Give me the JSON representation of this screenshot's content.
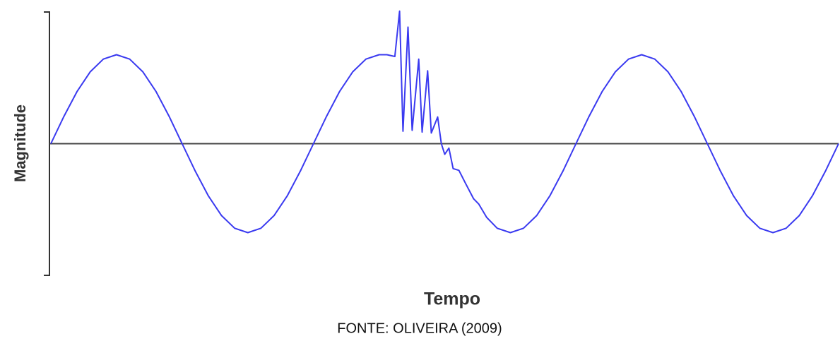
{
  "chart_data": {
    "type": "line",
    "ylabel": "Magnitude",
    "xlabel": "Tempo",
    "source": "FONTE: OLIVEIRA (2009)",
    "xlim": [
      0,
      3
    ],
    "ylim": [
      -1.48,
      1.48
    ],
    "x": [
      0,
      0.05,
      0.1,
      0.15,
      0.2,
      0.25,
      0.3,
      0.35,
      0.4,
      0.45,
      0.5,
      0.55,
      0.6,
      0.65,
      0.7,
      0.75,
      0.8,
      0.85,
      0.9,
      0.95,
      1,
      1.05,
      1.1,
      1.15,
      1.2,
      1.25,
      1.28,
      1.31,
      1.328,
      1.341,
      1.36,
      1.376,
      1.401,
      1.414,
      1.435,
      1.449,
      1.473,
      1.487,
      1.5,
      1.516,
      1.532,
      1.554,
      1.58,
      1.61,
      1.63,
      1.66,
      1.7,
      1.75,
      1.8,
      1.85,
      1.9,
      1.95,
      2,
      2.05,
      2.1,
      2.15,
      2.2,
      2.25,
      2.3,
      2.35,
      2.4,
      2.45,
      2.5,
      2.55,
      2.6,
      2.65,
      2.7,
      2.75,
      2.8,
      2.85,
      2.9,
      2.95,
      3
    ],
    "series": [
      {
        "color": "#3a3af0",
        "values": [
          0,
          0.309,
          0.588,
          0.809,
          0.951,
          1,
          0.951,
          0.809,
          0.588,
          0.309,
          0,
          -0.309,
          -0.588,
          -0.809,
          -0.951,
          -1,
          -0.951,
          -0.809,
          -0.588,
          -0.309,
          0,
          0.309,
          0.588,
          0.809,
          0.951,
          1,
          1,
          0.98,
          1.49,
          0.14,
          1.31,
          0.15,
          0.95,
          0.13,
          0.82,
          0.12,
          0.3,
          0,
          -0.12,
          -0.05,
          -0.28,
          -0.3,
          -0.45,
          -0.62,
          -0.68,
          -0.83,
          -0.951,
          -1,
          -0.951,
          -0.809,
          -0.588,
          -0.309,
          0,
          0.309,
          0.588,
          0.809,
          0.951,
          1,
          0.951,
          0.809,
          0.588,
          0.309,
          0,
          -0.309,
          -0.588,
          -0.809,
          -0.951,
          -1,
          -0.951,
          -0.809,
          -0.588,
          -0.309,
          0
        ]
      }
    ]
  }
}
